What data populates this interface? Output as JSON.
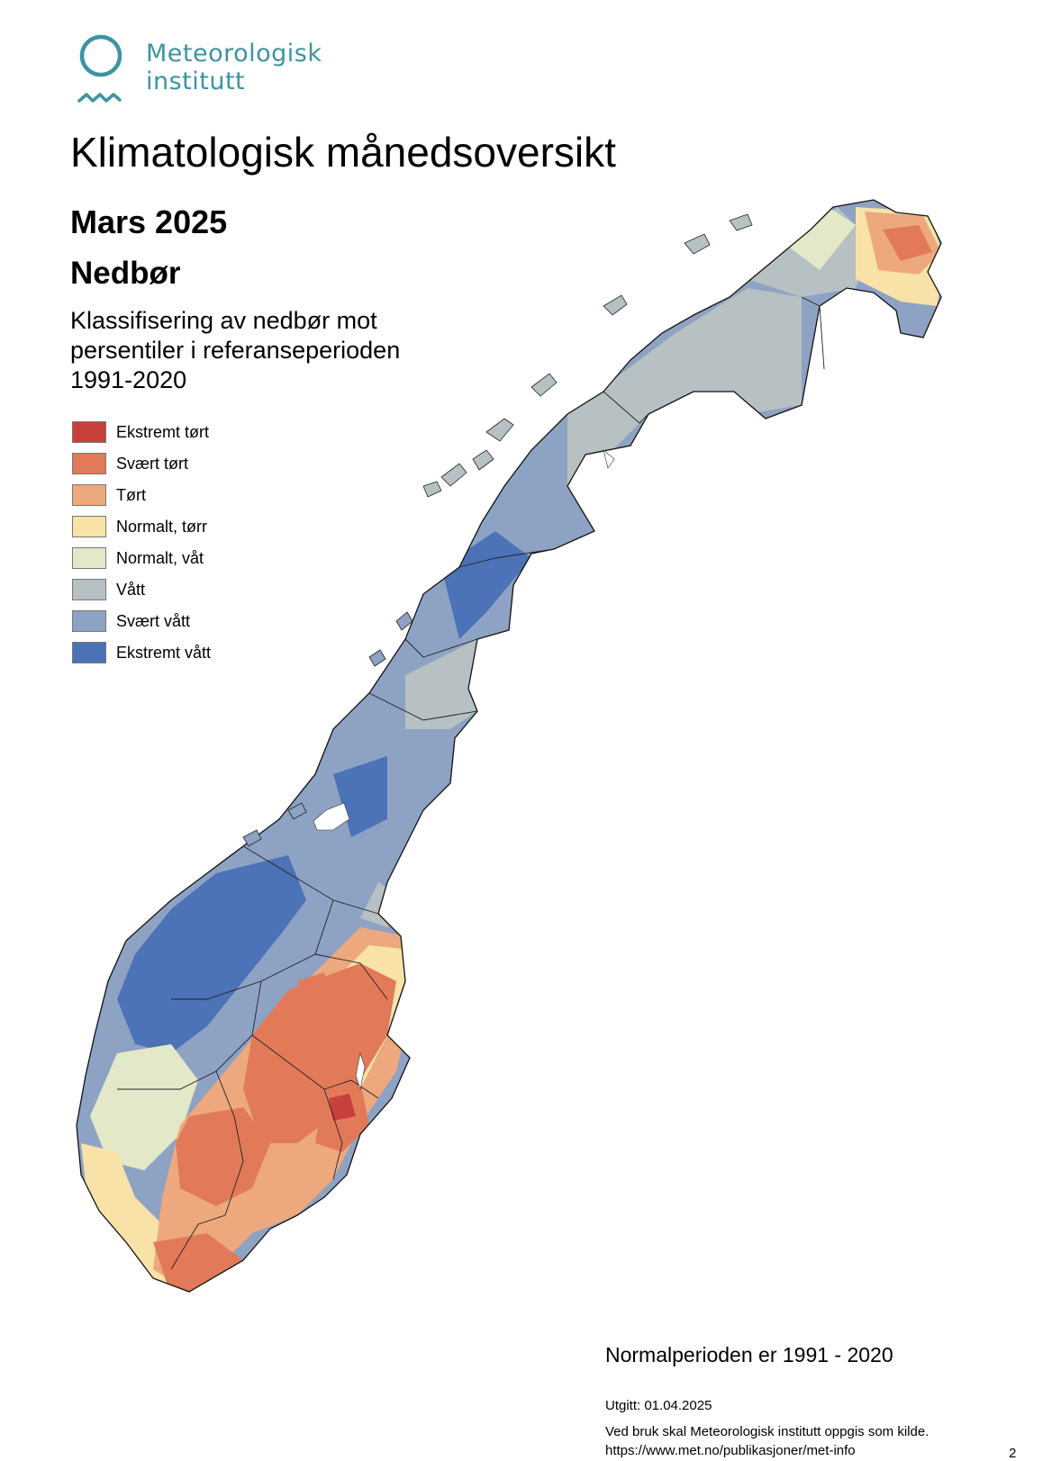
{
  "logo": {
    "line1": "Meteorologisk",
    "line2": "institutt",
    "color": "#3d93a2",
    "icon": "met-logo-icon"
  },
  "title": "Klimatologisk månedsoversikt",
  "month": "Mars 2025",
  "parameter": "Nedbør",
  "subtitle": {
    "line1": "Klassifisering av nedbør mot",
    "line2": "persentiler i referanseperioden",
    "line3": "1991-2020"
  },
  "legend": [
    {
      "label": "Ekstremt tørt",
      "color": "#c8403a"
    },
    {
      "label": "Svært tørt",
      "color": "#e27a59"
    },
    {
      "label": "Tørt",
      "color": "#eda97d"
    },
    {
      "label": "Normalt, tørr",
      "color": "#f8e2a8"
    },
    {
      "label": "Normalt, våt",
      "color": "#e3e9c8"
    },
    {
      "label": "Vått",
      "color": "#b7c0c2"
    },
    {
      "label": "Svært vått",
      "color": "#8ea2c4"
    },
    {
      "label": "Ekstremt vått",
      "color": "#4c72b7"
    }
  ],
  "normal_period": "Normalperioden er 1991 - 2020",
  "footer": {
    "issued": "Utgitt: 01.04.2025",
    "credit": "Ved bruk skal Meteorologisk institutt oppgis som kilde.",
    "url": "https://www.met.no/publikasjoner/met-info"
  },
  "page_number": "2"
}
